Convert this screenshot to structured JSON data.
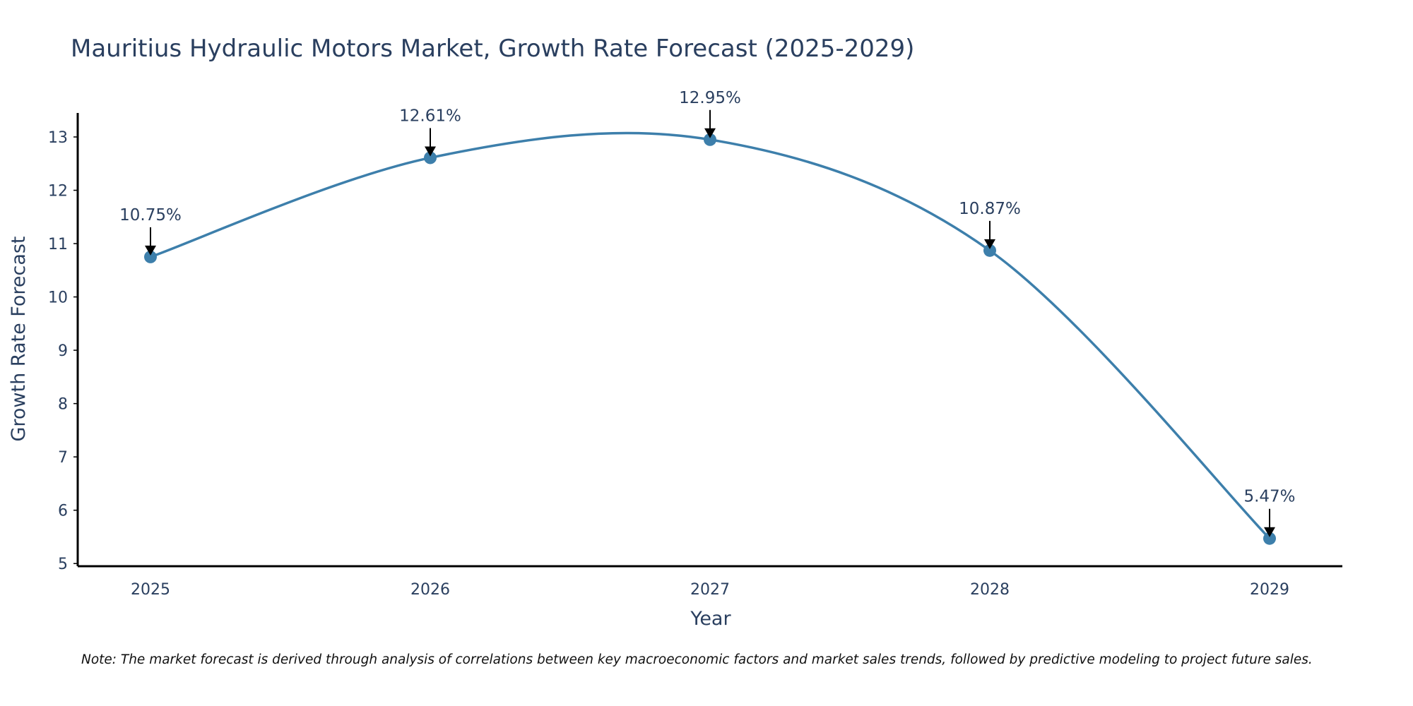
{
  "chart_data": {
    "type": "line",
    "title": "Mauritius Hydraulic Motors Market, Growth Rate Forecast (2025-2029)",
    "xlabel": "Year",
    "ylabel": "Growth Rate Forecast",
    "categories": [
      "2025",
      "2026",
      "2027",
      "2028",
      "2029"
    ],
    "series": [
      {
        "name": "Growth Rate Forecast",
        "values": [
          10.75,
          12.61,
          12.95,
          10.87,
          5.47
        ],
        "labels": [
          "10.75%",
          "12.61%",
          "12.95%",
          "10.87%",
          "5.47%"
        ]
      }
    ],
    "ylim": [
      4.95,
      13.45
    ],
    "yticks": [
      5,
      6,
      7,
      8,
      9,
      10,
      11,
      12,
      13
    ],
    "line_shape": "spline",
    "line_color": "#3d7fab",
    "marker_color": "#3d7fab",
    "arrow_color": "#000000",
    "text_color": "#2a3f5f",
    "grid": false,
    "note": "Note: The market forecast is derived through analysis of correlations between key macroeconomic factors and market sales trends, followed by predictive modeling to project future sales."
  }
}
